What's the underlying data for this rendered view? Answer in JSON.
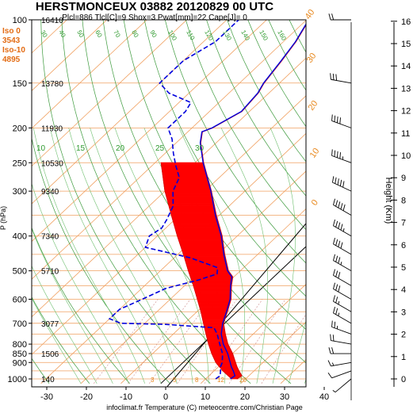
{
  "header": {
    "title": "HERSTMONCEUX 03882 20120829 00 UTC",
    "subtitle": "Plcl=886 Tlcl[C]=9 Shox=3 Pwat[mm]=22 Cape[J]= 0"
  },
  "levels_box": [
    {
      "label": "Iso 0",
      "value": "3543"
    },
    {
      "label": "Iso-10",
      "value": "4895"
    }
  ],
  "footer": {
    "credit": "infoclimat.fr Temperature (C) meteocentre.com/Christian Page"
  },
  "chart_data": {
    "type": "line",
    "title": "HERSTMONCEUX 03882 20120829 00 UTC",
    "xlabel": "Temperature (C)",
    "ylabel": "P (hPa)",
    "y2label": "Height (Km)",
    "xlim": [
      -35,
      45
    ],
    "ylim": [
      1030,
      100
    ],
    "x_ticks": [
      -30,
      -20,
      -10,
      0,
      10,
      20,
      30,
      40
    ],
    "p_ticks": [
      100,
      150,
      200,
      250,
      300,
      400,
      500,
      600,
      700,
      800,
      850,
      900,
      1000
    ],
    "height_ticks_km": [
      0,
      1,
      2,
      3,
      4,
      5,
      6,
      7,
      8,
      9,
      10,
      11,
      12,
      13,
      14,
      15,
      16
    ],
    "height_labels_m": [
      {
        "p": 100,
        "h": "16410"
      },
      {
        "p": 150,
        "h": "13780"
      },
      {
        "p": 200,
        "h": "11930"
      },
      {
        "p": 250,
        "h": "10530"
      },
      {
        "p": 300,
        "h": "9340"
      },
      {
        "p": 400,
        "h": "7340"
      },
      {
        "p": 500,
        "h": "5710"
      },
      {
        "p": 700,
        "h": "3077"
      },
      {
        "p": 850,
        "h": "1506"
      },
      {
        "p": 1000,
        "h": "140"
      }
    ],
    "mixing_ratio_labels": [
      "3",
      "5",
      "8",
      "12",
      "20"
    ],
    "dry_adiabat_labels": [
      "0",
      "10",
      "20",
      "30",
      "40"
    ],
    "moist_labels": [
      "10",
      "15",
      "20",
      "25",
      "30"
    ],
    "rh_labels": [
      "160",
      "150",
      "140",
      "130",
      "120",
      "110",
      "100",
      "90",
      "80",
      "70",
      "60",
      "50",
      "40",
      "30",
      "20",
      "10",
      "0",
      "-10",
      "-20",
      "-30"
    ],
    "series": [
      {
        "name": "Temperature",
        "color": "#0000dd",
        "points": [
          {
            "p": 1000,
            "t": 16.2
          },
          {
            "p": 980,
            "t": 16.5
          },
          {
            "p": 950,
            "t": 14.8
          },
          {
            "p": 925,
            "t": 13.2
          },
          {
            "p": 900,
            "t": 11.8
          },
          {
            "p": 850,
            "t": 8.8
          },
          {
            "p": 800,
            "t": 5.2
          },
          {
            "p": 750,
            "t": 2.0
          },
          {
            "p": 700,
            "t": -0.5
          },
          {
            "p": 650,
            "t": -2.6
          },
          {
            "p": 600,
            "t": -5.0
          },
          {
            "p": 550,
            "t": -8.5
          },
          {
            "p": 520,
            "t": -10.5
          },
          {
            "p": 500,
            "t": -13.2
          },
          {
            "p": 450,
            "t": -18.5
          },
          {
            "p": 400,
            "t": -24.0
          },
          {
            "p": 350,
            "t": -31.0
          },
          {
            "p": 300,
            "t": -38.5
          },
          {
            "p": 250,
            "t": -48.0
          },
          {
            "p": 220,
            "t": -54.0
          },
          {
            "p": 205,
            "t": -56.5
          },
          {
            "p": 200,
            "t": -55.0
          },
          {
            "p": 180,
            "t": -52.0
          },
          {
            "p": 160,
            "t": -52.8
          },
          {
            "p": 150,
            "t": -54.0
          },
          {
            "p": 130,
            "t": -55.5
          },
          {
            "p": 115,
            "t": -57.0
          },
          {
            "p": 100,
            "t": -59.5
          }
        ]
      },
      {
        "name": "Dewpoint",
        "color": "#0000dd",
        "points": [
          {
            "p": 1000,
            "t": 12.5
          },
          {
            "p": 980,
            "t": 12.8
          },
          {
            "p": 950,
            "t": 11.6
          },
          {
            "p": 925,
            "t": 10.5
          },
          {
            "p": 900,
            "t": 9.8
          },
          {
            "p": 850,
            "t": 7.5
          },
          {
            "p": 800,
            "t": 4.3
          },
          {
            "p": 750,
            "t": 1.0
          },
          {
            "p": 720,
            "t": -1.5
          },
          {
            "p": 705,
            "t": -14.5
          },
          {
            "p": 700,
            "t": -26.0
          },
          {
            "p": 680,
            "t": -30.0
          },
          {
            "p": 640,
            "t": -30.0
          },
          {
            "p": 600,
            "t": -27.0
          },
          {
            "p": 560,
            "t": -24.0
          },
          {
            "p": 530,
            "t": -18.0
          },
          {
            "p": 510,
            "t": -15.0
          },
          {
            "p": 490,
            "t": -16.5
          },
          {
            "p": 460,
            "t": -26.0
          },
          {
            "p": 430,
            "t": -40.0
          },
          {
            "p": 400,
            "t": -42.0
          },
          {
            "p": 380,
            "t": -41.0
          },
          {
            "p": 360,
            "t": -42.0
          },
          {
            "p": 330,
            "t": -44.0
          },
          {
            "p": 300,
            "t": -48.0
          },
          {
            "p": 275,
            "t": -50.0
          },
          {
            "p": 255,
            "t": -54.0
          },
          {
            "p": 235,
            "t": -58.0
          },
          {
            "p": 215,
            "t": -62.0
          },
          {
            "p": 200,
            "t": -66.0
          },
          {
            "p": 180,
            "t": -66.0
          },
          {
            "p": 170,
            "t": -67.0
          },
          {
            "p": 160,
            "t": -75.0
          },
          {
            "p": 150,
            "t": -80.0
          },
          {
            "p": 130,
            "t": -80.0
          },
          {
            "p": 115,
            "t": -77.0
          },
          {
            "p": 100,
            "t": -77.0
          }
        ]
      },
      {
        "name": "Virtual temperature",
        "color": "#dd0000",
        "points": [
          {
            "p": 1000,
            "t": 17.8
          },
          {
            "p": 980,
            "t": 18.2
          },
          {
            "p": 950,
            "t": 16.2
          },
          {
            "p": 925,
            "t": 14.6
          },
          {
            "p": 900,
            "t": 13.1
          },
          {
            "p": 850,
            "t": 10.0
          },
          {
            "p": 800,
            "t": 6.3
          },
          {
            "p": 750,
            "t": 3.0
          },
          {
            "p": 700,
            "t": -0.3
          },
          {
            "p": 650,
            "t": -2.4
          },
          {
            "p": 600,
            "t": -4.8
          },
          {
            "p": 550,
            "t": -8.3
          },
          {
            "p": 520,
            "t": -10.3
          },
          {
            "p": 500,
            "t": -13.0
          },
          {
            "p": 450,
            "t": -18.3
          },
          {
            "p": 400,
            "t": -23.8
          },
          {
            "p": 350,
            "t": -30.8
          },
          {
            "p": 300,
            "t": -38.4
          },
          {
            "p": 250,
            "t": -47.9
          },
          {
            "p": 220,
            "t": -53.9
          },
          {
            "p": 205,
            "t": -56.4
          },
          {
            "p": 200,
            "t": -54.9
          },
          {
            "p": 180,
            "t": -51.9
          },
          {
            "p": 160,
            "t": -52.7
          },
          {
            "p": 150,
            "t": -53.9
          },
          {
            "p": 130,
            "t": -55.4
          },
          {
            "p": 115,
            "t": -56.9
          },
          {
            "p": 100,
            "t": -59.4
          }
        ]
      },
      {
        "name": "Parcel",
        "color": "#dd0000",
        "points": [
          {
            "p": 1000,
            "t": 16.5
          },
          {
            "p": 950,
            "t": 12.2
          },
          {
            "p": 900,
            "t": 8.2
          },
          {
            "p": 850,
            "t": 4.8
          },
          {
            "p": 800,
            "t": 1.5
          },
          {
            "p": 750,
            "t": -1.8
          },
          {
            "p": 700,
            "t": -5.3
          },
          {
            "p": 650,
            "t": -9.0
          },
          {
            "p": 600,
            "t": -13.2
          },
          {
            "p": 550,
            "t": -17.8
          },
          {
            "p": 500,
            "t": -23.0
          },
          {
            "p": 450,
            "t": -28.6
          },
          {
            "p": 400,
            "t": -35.0
          },
          {
            "p": 350,
            "t": -42.0
          },
          {
            "p": 300,
            "t": -50.0
          },
          {
            "p": 250,
            "t": -58.5
          }
        ]
      }
    ],
    "fills": [
      {
        "name": "negative-area",
        "color": "#ff0000"
      },
      {
        "name": "positive-area",
        "color": "#ffff00"
      }
    ],
    "wind_profile": [
      {
        "p": 1000,
        "dir": 230,
        "kt": 5
      },
      {
        "p": 950,
        "dir": 250,
        "kt": 10
      },
      {
        "p": 900,
        "dir": 260,
        "kt": 15
      },
      {
        "p": 850,
        "dir": 270,
        "kt": 20
      },
      {
        "p": 800,
        "dir": 280,
        "kt": 20
      },
      {
        "p": 750,
        "dir": 290,
        "kt": 25
      },
      {
        "p": 700,
        "dir": 300,
        "kt": 25
      },
      {
        "p": 650,
        "dir": 300,
        "kt": 25
      },
      {
        "p": 600,
        "dir": 300,
        "kt": 30
      },
      {
        "p": 550,
        "dir": 300,
        "kt": 30
      },
      {
        "p": 500,
        "dir": 300,
        "kt": 35
      },
      {
        "p": 450,
        "dir": 300,
        "kt": 40
      },
      {
        "p": 400,
        "dir": 300,
        "kt": 45
      },
      {
        "p": 350,
        "dir": 300,
        "kt": 50
      },
      {
        "p": 300,
        "dir": 295,
        "kt": 50
      },
      {
        "p": 250,
        "dir": 290,
        "kt": 45
      },
      {
        "p": 200,
        "dir": 290,
        "kt": 40
      },
      {
        "p": 150,
        "dir": 280,
        "kt": 30
      },
      {
        "p": 100,
        "dir": 270,
        "kt": 20
      }
    ]
  }
}
